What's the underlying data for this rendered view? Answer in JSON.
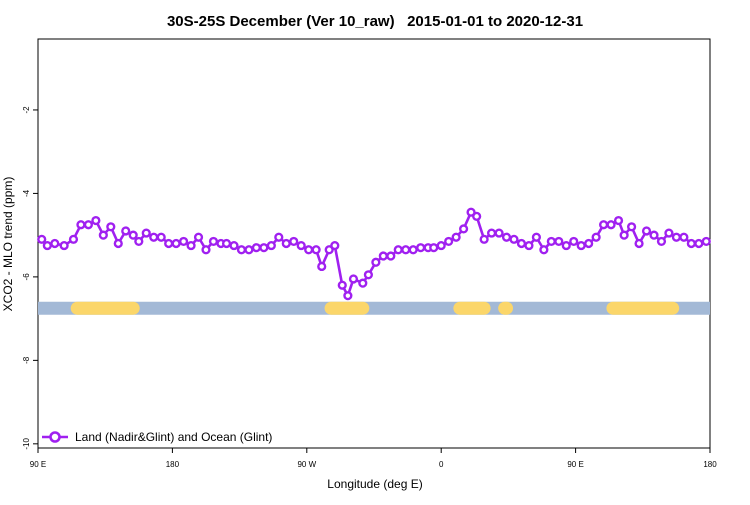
{
  "chart_data": {
    "type": "line",
    "title": "30S-25S December (Ver 10_raw)   2015-01-01 to 2020-12-31",
    "xlabel": "Longitude (deg E)",
    "ylabel": "XCO2 - MLO trend (ppm)",
    "xlim": [
      90,
      450
    ],
    "ylim": [
      -10.1,
      -0.3
    ],
    "xticks": [
      {
        "value": 90,
        "label": "90 E"
      },
      {
        "value": 162,
        "label": "180"
      },
      {
        "value": 234,
        "label": "90 W"
      },
      {
        "value": 306,
        "label": "0"
      },
      {
        "value": 378,
        "label": "90 E"
      },
      {
        "value": 450,
        "label": "180"
      }
    ],
    "yticks": [
      {
        "value": -2,
        "label": "-2"
      },
      {
        "value": -4,
        "label": "-4"
      },
      {
        "value": -6,
        "label": "-6"
      },
      {
        "value": -8,
        "label": "-8"
      },
      {
        "value": -10,
        "label": "-10"
      }
    ],
    "legend": {
      "position": "bottom-left",
      "label": "Land (Nadir&Glint) and Ocean (Glint)"
    },
    "series": [
      {
        "name": "Land (Nadir&Glint) and Ocean (Glint)",
        "color": "#a020f0",
        "x": [
          92,
          95,
          99,
          104,
          109,
          113,
          117,
          121,
          125,
          129,
          133,
          137,
          141,
          144,
          148,
          152,
          156,
          160,
          164,
          168,
          172,
          176,
          180,
          184,
          188,
          191,
          195,
          199,
          203,
          207,
          211,
          215,
          219,
          223,
          227,
          231,
          235,
          239,
          242,
          246,
          249,
          253,
          256,
          259,
          264,
          267,
          271,
          275,
          279,
          283,
          287,
          291,
          295,
          299,
          302,
          306,
          310,
          314,
          318,
          322,
          325,
          329,
          333,
          337,
          341,
          345,
          349,
          353,
          357,
          361,
          365,
          369,
          373,
          377,
          381,
          385,
          389,
          393,
          397,
          401,
          404,
          408,
          412,
          416,
          420,
          424,
          428,
          432,
          436,
          440,
          444,
          448
        ],
        "y": [
          -5.1,
          -5.25,
          -5.2,
          -5.25,
          -5.1,
          -4.75,
          -4.75,
          -4.65,
          -5.0,
          -4.8,
          -5.2,
          -4.9,
          -5.0,
          -5.15,
          -4.95,
          -5.05,
          -5.05,
          -5.2,
          -5.2,
          -5.15,
          -5.25,
          -5.05,
          -5.35,
          -5.15,
          -5.2,
          -5.2,
          -5.25,
          -5.35,
          -5.35,
          -5.3,
          -5.3,
          -5.25,
          -5.05,
          -5.2,
          -5.15,
          -5.25,
          -5.35,
          -5.35,
          -5.75,
          -5.35,
          -5.25,
          -6.2,
          -6.45,
          -6.05,
          -6.15,
          -5.95,
          -5.65,
          -5.5,
          -5.5,
          -5.35,
          -5.35,
          -5.35,
          -5.3,
          -5.3,
          -5.3,
          -5.25,
          -5.15,
          -5.05,
          -4.85,
          -4.45,
          -4.55,
          -5.1,
          -4.95,
          -4.95,
          -5.05,
          -5.1,
          -5.2,
          -5.25,
          -5.05,
          -5.35,
          -5.15,
          -5.15,
          -5.25,
          -5.15,
          -5.25,
          -5.2,
          -5.05,
          -4.75,
          -4.75,
          -4.65,
          -5.0,
          -4.8,
          -5.2,
          -4.9,
          -5.0,
          -5.15,
          -4.95,
          -5.05,
          -5.05,
          -5.2,
          -5.2,
          -5.15
        ]
      }
    ],
    "surface_band": {
      "y": -6.75,
      "ocean_color": "#a3b9d6",
      "land_color": "#fbd66a",
      "land_segments": [
        [
          111,
          141
        ],
        [
          247,
          264
        ],
        [
          316,
          329
        ],
        [
          340,
          341
        ],
        [
          398,
          430
        ]
      ]
    }
  }
}
